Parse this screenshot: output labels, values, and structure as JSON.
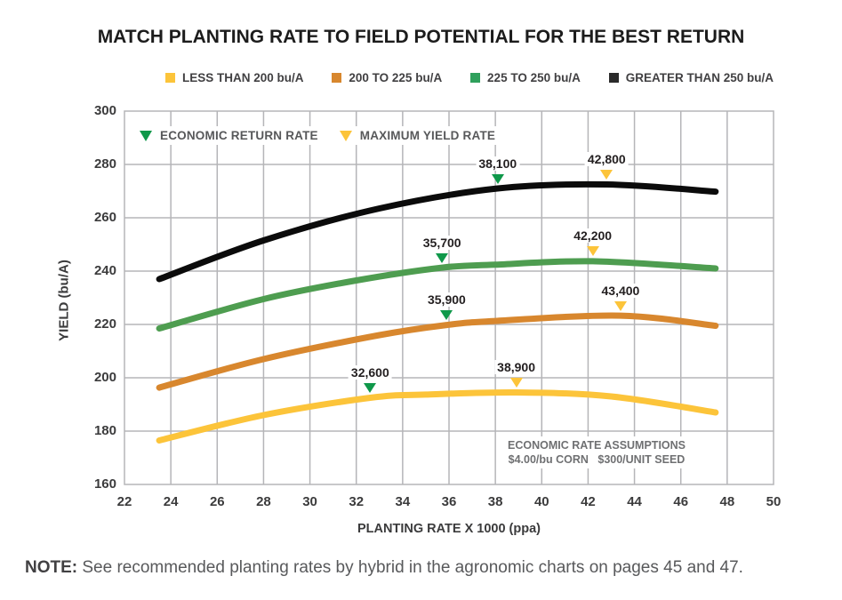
{
  "title": "MATCH PLANTING RATE TO FIELD POTENTIAL FOR THE BEST RETURN",
  "legend": [
    {
      "label": "LESS THAN 200 bu/A",
      "color": "#FCC43A"
    },
    {
      "label": "200 TO 225 bu/A",
      "color": "#D8872E"
    },
    {
      "label": "225 TO 250 bu/A",
      "color": "#2FA05C"
    },
    {
      "label": "GREATER THAN 250 bu/A",
      "color": "#2B2B2B"
    }
  ],
  "marker_legend": [
    {
      "label": "ECONOMIC RETURN RATE",
      "color": "#0F984A"
    },
    {
      "label": "MAXIMUM YIELD RATE",
      "color": "#FCC43A"
    }
  ],
  "assumptions": {
    "line1": "ECONOMIC RATE ASSUMPTIONS",
    "line2": "$4.00/bu CORN   $300/UNIT SEED"
  },
  "note": {
    "prefix": "NOTE:",
    "text": " See recommended planting rates by hybrid in the agronomic charts on pages 45 and 47."
  },
  "chart_data": {
    "type": "line",
    "title": "MATCH PLANTING RATE TO FIELD POTENTIAL FOR THE BEST RETURN",
    "xlabel": "PLANTING RATE X 1000 (ppa)",
    "ylabel": "YIELD (bu/A)",
    "xlim": [
      22,
      50
    ],
    "ylim": [
      160,
      300
    ],
    "xticks": [
      22,
      24,
      26,
      28,
      30,
      32,
      34,
      36,
      38,
      40,
      42,
      44,
      46,
      48,
      50
    ],
    "yticks": [
      160,
      180,
      200,
      220,
      240,
      260,
      280,
      300
    ],
    "grid": true,
    "grid_color": "#b5b5b8",
    "legend_position": "top",
    "marker_colors": {
      "economic_return_rate": "#0F984A",
      "maximum_yield_rate": "#FCC43A"
    },
    "series": [
      {
        "name": "LESS THAN 200 bu/A",
        "key": "less-than-200",
        "color": "#FCC43A",
        "points": [
          [
            23.5,
            176.5
          ],
          [
            28,
            186
          ],
          [
            32.6,
            192.5
          ],
          [
            35,
            193.7
          ],
          [
            38.9,
            194.5
          ],
          [
            43,
            193
          ],
          [
            47.5,
            187
          ]
        ],
        "economic_return_rate": {
          "x": 32.6,
          "yield": 192.5,
          "label": "32,600"
        },
        "maximum_yield_rate": {
          "x": 38.9,
          "yield": 194.5,
          "label": "38,900"
        }
      },
      {
        "name": "200 TO 225 bu/A",
        "key": "200-to-225",
        "color": "#D8872E",
        "points": [
          [
            23.5,
            196.3
          ],
          [
            28,
            207
          ],
          [
            33,
            216
          ],
          [
            35.9,
            219.8
          ],
          [
            38,
            221.3
          ],
          [
            43.4,
            223.3
          ],
          [
            47.5,
            219.5
          ]
        ],
        "economic_return_rate": {
          "x": 35.9,
          "yield": 219.8,
          "label": "35,900"
        },
        "maximum_yield_rate": {
          "x": 43.4,
          "yield": 223.3,
          "label": "43,400"
        }
      },
      {
        "name": "225 TO 250 bu/A",
        "key": "225-to-250",
        "color": "#4E9D50",
        "points": [
          [
            23.5,
            218.5
          ],
          [
            28,
            229.5
          ],
          [
            32,
            236.5
          ],
          [
            35.7,
            241.3
          ],
          [
            38,
            242.4
          ],
          [
            42.2,
            243.7
          ],
          [
            47.5,
            241
          ]
        ],
        "economic_return_rate": {
          "x": 35.7,
          "yield": 241.3,
          "label": "35,700"
        },
        "maximum_yield_rate": {
          "x": 42.2,
          "yield": 243.7,
          "label": "42,200"
        }
      },
      {
        "name": "GREATER THAN 250 bu/A",
        "key": "greater-than-250",
        "color": "#0B0B0B",
        "points": [
          [
            23.5,
            237
          ],
          [
            28,
            251.5
          ],
          [
            33,
            263.5
          ],
          [
            38.1,
            271
          ],
          [
            42.8,
            272.5
          ],
          [
            47.5,
            269.8
          ]
        ],
        "economic_return_rate": {
          "x": 38.1,
          "yield": 271,
          "label": "38,100"
        },
        "maximum_yield_rate": {
          "x": 42.8,
          "yield": 272.5,
          "label": "42,800"
        }
      }
    ]
  }
}
